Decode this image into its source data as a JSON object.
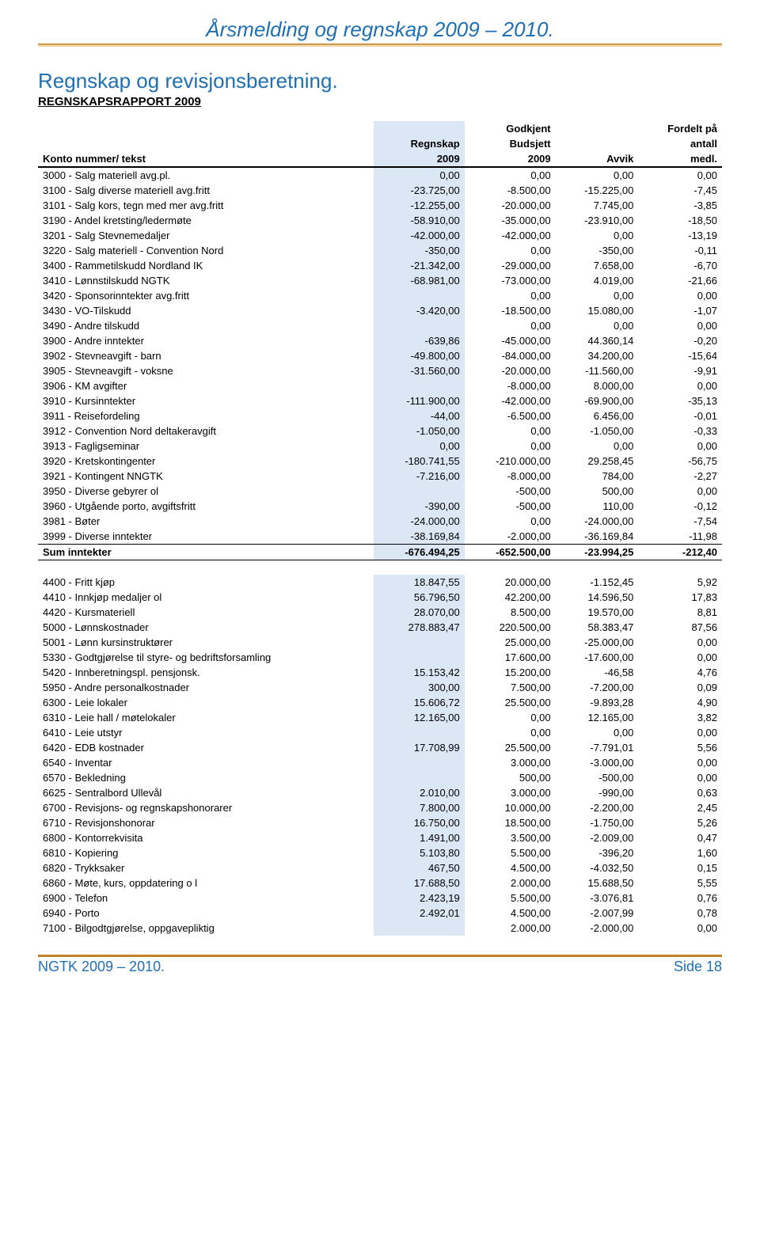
{
  "colors": {
    "accent_blue": "#1f6fb4",
    "rule_brown": "#c2822c",
    "col_bg": "#dbe7f4",
    "text": "#000000",
    "bg": "#ffffff"
  },
  "doc_title": "Årsmelding og regnskap 2009 – 2010.",
  "section_title": "Regnskap og revisjonsberetning.",
  "subhead": "REGNSKAPSRAPPORT 2009",
  "headers": {
    "konto": "Konto nummer/ tekst",
    "regnskap_top": "Regnskap",
    "regnskap_bot": "2009",
    "budsjett_top": "Godkjent",
    "budsjett_mid": "Budsjett",
    "budsjett_bot": "2009",
    "avvik": "Avvik",
    "fordelt_top": "Fordelt på",
    "fordelt_mid": "antall",
    "fordelt_bot": "medl."
  },
  "income": [
    {
      "label": "3000 - Salg materiell avg.pl.",
      "r": "0,00",
      "b": "0,00",
      "a": "0,00",
      "f": "0,00"
    },
    {
      "label": "3100 - Salg diverse materiell avg.fritt",
      "r": "-23.725,00",
      "b": "-8.500,00",
      "a": "-15.225,00",
      "f": "-7,45"
    },
    {
      "label": "3101 - Salg kors, tegn med mer avg.fritt",
      "r": "-12.255,00",
      "b": "-20.000,00",
      "a": "7.745,00",
      "f": "-3,85"
    },
    {
      "label": "3190 - Andel kretsting/ledermøte",
      "r": "-58.910,00",
      "b": "-35.000,00",
      "a": "-23.910,00",
      "f": "-18,50"
    },
    {
      "label": "3201 - Salg Stevnemedaljer",
      "r": "-42.000,00",
      "b": "-42.000,00",
      "a": "0,00",
      "f": "-13,19"
    },
    {
      "label": "3220 - Salg materiell - Convention Nord",
      "r": "-350,00",
      "b": "0,00",
      "a": "-350,00",
      "f": "-0,11"
    },
    {
      "label": "3400 - Rammetilskudd Nordland IK",
      "r": "-21.342,00",
      "b": "-29.000,00",
      "a": "7.658,00",
      "f": "-6,70"
    },
    {
      "label": "3410 - Lønnstilskudd NGTK",
      "r": "-68.981,00",
      "b": "-73.000,00",
      "a": "4.019,00",
      "f": "-21,66"
    },
    {
      "label": "3420 - Sponsorinntekter avg.fritt",
      "r": "",
      "b": "0,00",
      "a": "0,00",
      "f": "0,00"
    },
    {
      "label": "3430 - VO-Tilskudd",
      "r": "-3.420,00",
      "b": "-18.500,00",
      "a": "15.080,00",
      "f": "-1,07"
    },
    {
      "label": "3490 - Andre tilskudd",
      "r": "",
      "b": "0,00",
      "a": "0,00",
      "f": "0,00"
    },
    {
      "label": "3900 - Andre inntekter",
      "r": "-639,86",
      "b": "-45.000,00",
      "a": "44.360,14",
      "f": "-0,20"
    },
    {
      "label": "3902 - Stevneavgift - barn",
      "r": "-49.800,00",
      "b": "-84.000,00",
      "a": "34.200,00",
      "f": "-15,64"
    },
    {
      "label": "3905 - Stevneavgift - voksne",
      "r": "-31.560,00",
      "b": "-20.000,00",
      "a": "-11.560,00",
      "f": "-9,91"
    },
    {
      "label": "3906 - KM avgifter",
      "r": "",
      "b": "-8.000,00",
      "a": "8.000,00",
      "f": "0,00"
    },
    {
      "label": "3910 - Kursinntekter",
      "r": "-111.900,00",
      "b": "-42.000,00",
      "a": "-69.900,00",
      "f": "-35,13"
    },
    {
      "label": "3911 - Reisefordeling",
      "r": "-44,00",
      "b": "-6.500,00",
      "a": "6.456,00",
      "f": "-0,01"
    },
    {
      "label": "3912 - Convention Nord deltakeravgift",
      "r": "-1.050,00",
      "b": "0,00",
      "a": "-1.050,00",
      "f": "-0,33"
    },
    {
      "label": "3913 - Fagligseminar",
      "r": "0,00",
      "b": "0,00",
      "a": "0,00",
      "f": "0,00"
    },
    {
      "label": "3920 - Kretskontingenter",
      "r": "-180.741,55",
      "b": "-210.000,00",
      "a": "29.258,45",
      "f": "-56,75"
    },
    {
      "label": "3921 - Kontingent NNGTK",
      "r": "-7.216,00",
      "b": "-8.000,00",
      "a": "784,00",
      "f": "-2,27"
    },
    {
      "label": "3950 - Diverse gebyrer ol",
      "r": "",
      "b": "-500,00",
      "a": "500,00",
      "f": "0,00"
    },
    {
      "label": "3960 - Utgående porto, avgiftsfritt",
      "r": "-390,00",
      "b": "-500,00",
      "a": "110,00",
      "f": "-0,12"
    },
    {
      "label": "3981 - Bøter",
      "r": "-24.000,00",
      "b": "0,00",
      "a": "-24.000,00",
      "f": "-7,54"
    },
    {
      "label": "3999 - Diverse inntekter",
      "r": "-38.169,84",
      "b": "-2.000,00",
      "a": "-36.169,84",
      "f": "-11,98"
    }
  ],
  "sum_income": {
    "label": "Sum inntekter",
    "r": "-676.494,25",
    "b": "-652.500,00",
    "a": "-23.994,25",
    "f": "-212,40"
  },
  "expense": [
    {
      "label": "4400 - Fritt kjøp",
      "r": "18.847,55",
      "b": "20.000,00",
      "a": "-1.152,45",
      "f": "5,92"
    },
    {
      "label": "4410 - Innkjøp medaljer ol",
      "r": "56.796,50",
      "b": "42.200,00",
      "a": "14.596,50",
      "f": "17,83"
    },
    {
      "label": "4420 - Kursmateriell",
      "r": "28.070,00",
      "b": "8.500,00",
      "a": "19.570,00",
      "f": "8,81"
    },
    {
      "label": "5000 - Lønnskostnader",
      "r": "278.883,47",
      "b": "220.500,00",
      "a": "58.383,47",
      "f": "87,56"
    },
    {
      "label": "5001 - Lønn kursinstruktører",
      "r": "",
      "b": "25.000,00",
      "a": "-25.000,00",
      "f": "0,00"
    },
    {
      "label": "5330 - Godtgjørelse til styre- og bedriftsforsamling",
      "r": "",
      "b": "17.600,00",
      "a": "-17.600,00",
      "f": "0,00"
    },
    {
      "label": "5420 - Innberetningspl. pensjonsk.",
      "r": "15.153,42",
      "b": "15.200,00",
      "a": "-46,58",
      "f": "4,76"
    },
    {
      "label": "5950 - Andre personalkostnader",
      "r": "300,00",
      "b": "7.500,00",
      "a": "-7.200,00",
      "f": "0,09"
    },
    {
      "label": "6300 - Leie lokaler",
      "r": "15.606,72",
      "b": "25.500,00",
      "a": "-9.893,28",
      "f": "4,90"
    },
    {
      "label": "6310 - Leie hall / møtelokaler",
      "r": "12.165,00",
      "b": "0,00",
      "a": "12.165,00",
      "f": "3,82"
    },
    {
      "label": "6410 - Leie utstyr",
      "r": "",
      "b": "0,00",
      "a": "0,00",
      "f": "0,00"
    },
    {
      "label": "6420 - EDB kostnader",
      "r": "17.708,99",
      "b": "25.500,00",
      "a": "-7.791,01",
      "f": "5,56"
    },
    {
      "label": "6540 - Inventar",
      "r": "",
      "b": "3.000,00",
      "a": "-3.000,00",
      "f": "0,00"
    },
    {
      "label": "6570 - Bekledning",
      "r": "",
      "b": "500,00",
      "a": "-500,00",
      "f": "0,00"
    },
    {
      "label": "6625 - Sentralbord Ullevål",
      "r": "2.010,00",
      "b": "3.000,00",
      "a": "-990,00",
      "f": "0,63"
    },
    {
      "label": "6700 - Revisjons- og regnskapshonorarer",
      "r": "7.800,00",
      "b": "10.000,00",
      "a": "-2.200,00",
      "f": "2,45"
    },
    {
      "label": "6710 - Revisjonshonorar",
      "r": "16.750,00",
      "b": "18.500,00",
      "a": "-1.750,00",
      "f": "5,26"
    },
    {
      "label": "6800 - Kontorrekvisita",
      "r": "1.491,00",
      "b": "3.500,00",
      "a": "-2.009,00",
      "f": "0,47"
    },
    {
      "label": "6810 - Kopiering",
      "r": "5.103,80",
      "b": "5.500,00",
      "a": "-396,20",
      "f": "1,60"
    },
    {
      "label": "6820 - Trykksaker",
      "r": "467,50",
      "b": "4.500,00",
      "a": "-4.032,50",
      "f": "0,15"
    },
    {
      "label": "6860 - Møte, kurs, oppdatering o l",
      "r": "17.688,50",
      "b": "2.000,00",
      "a": "15.688,50",
      "f": "5,55"
    },
    {
      "label": "6900 - Telefon",
      "r": "2.423,19",
      "b": "5.500,00",
      "a": "-3.076,81",
      "f": "0,76"
    },
    {
      "label": "6940 - Porto",
      "r": "2.492,01",
      "b": "4.500,00",
      "a": "-2.007,99",
      "f": "0,78"
    },
    {
      "label": "7100 - Bilgodtgjørelse, oppgavepliktig",
      "r": "",
      "b": "2.000,00",
      "a": "-2.000,00",
      "f": "0,00"
    }
  ],
  "footer": {
    "left": "NGTK 2009 – 2010.",
    "right": "Side 18"
  }
}
